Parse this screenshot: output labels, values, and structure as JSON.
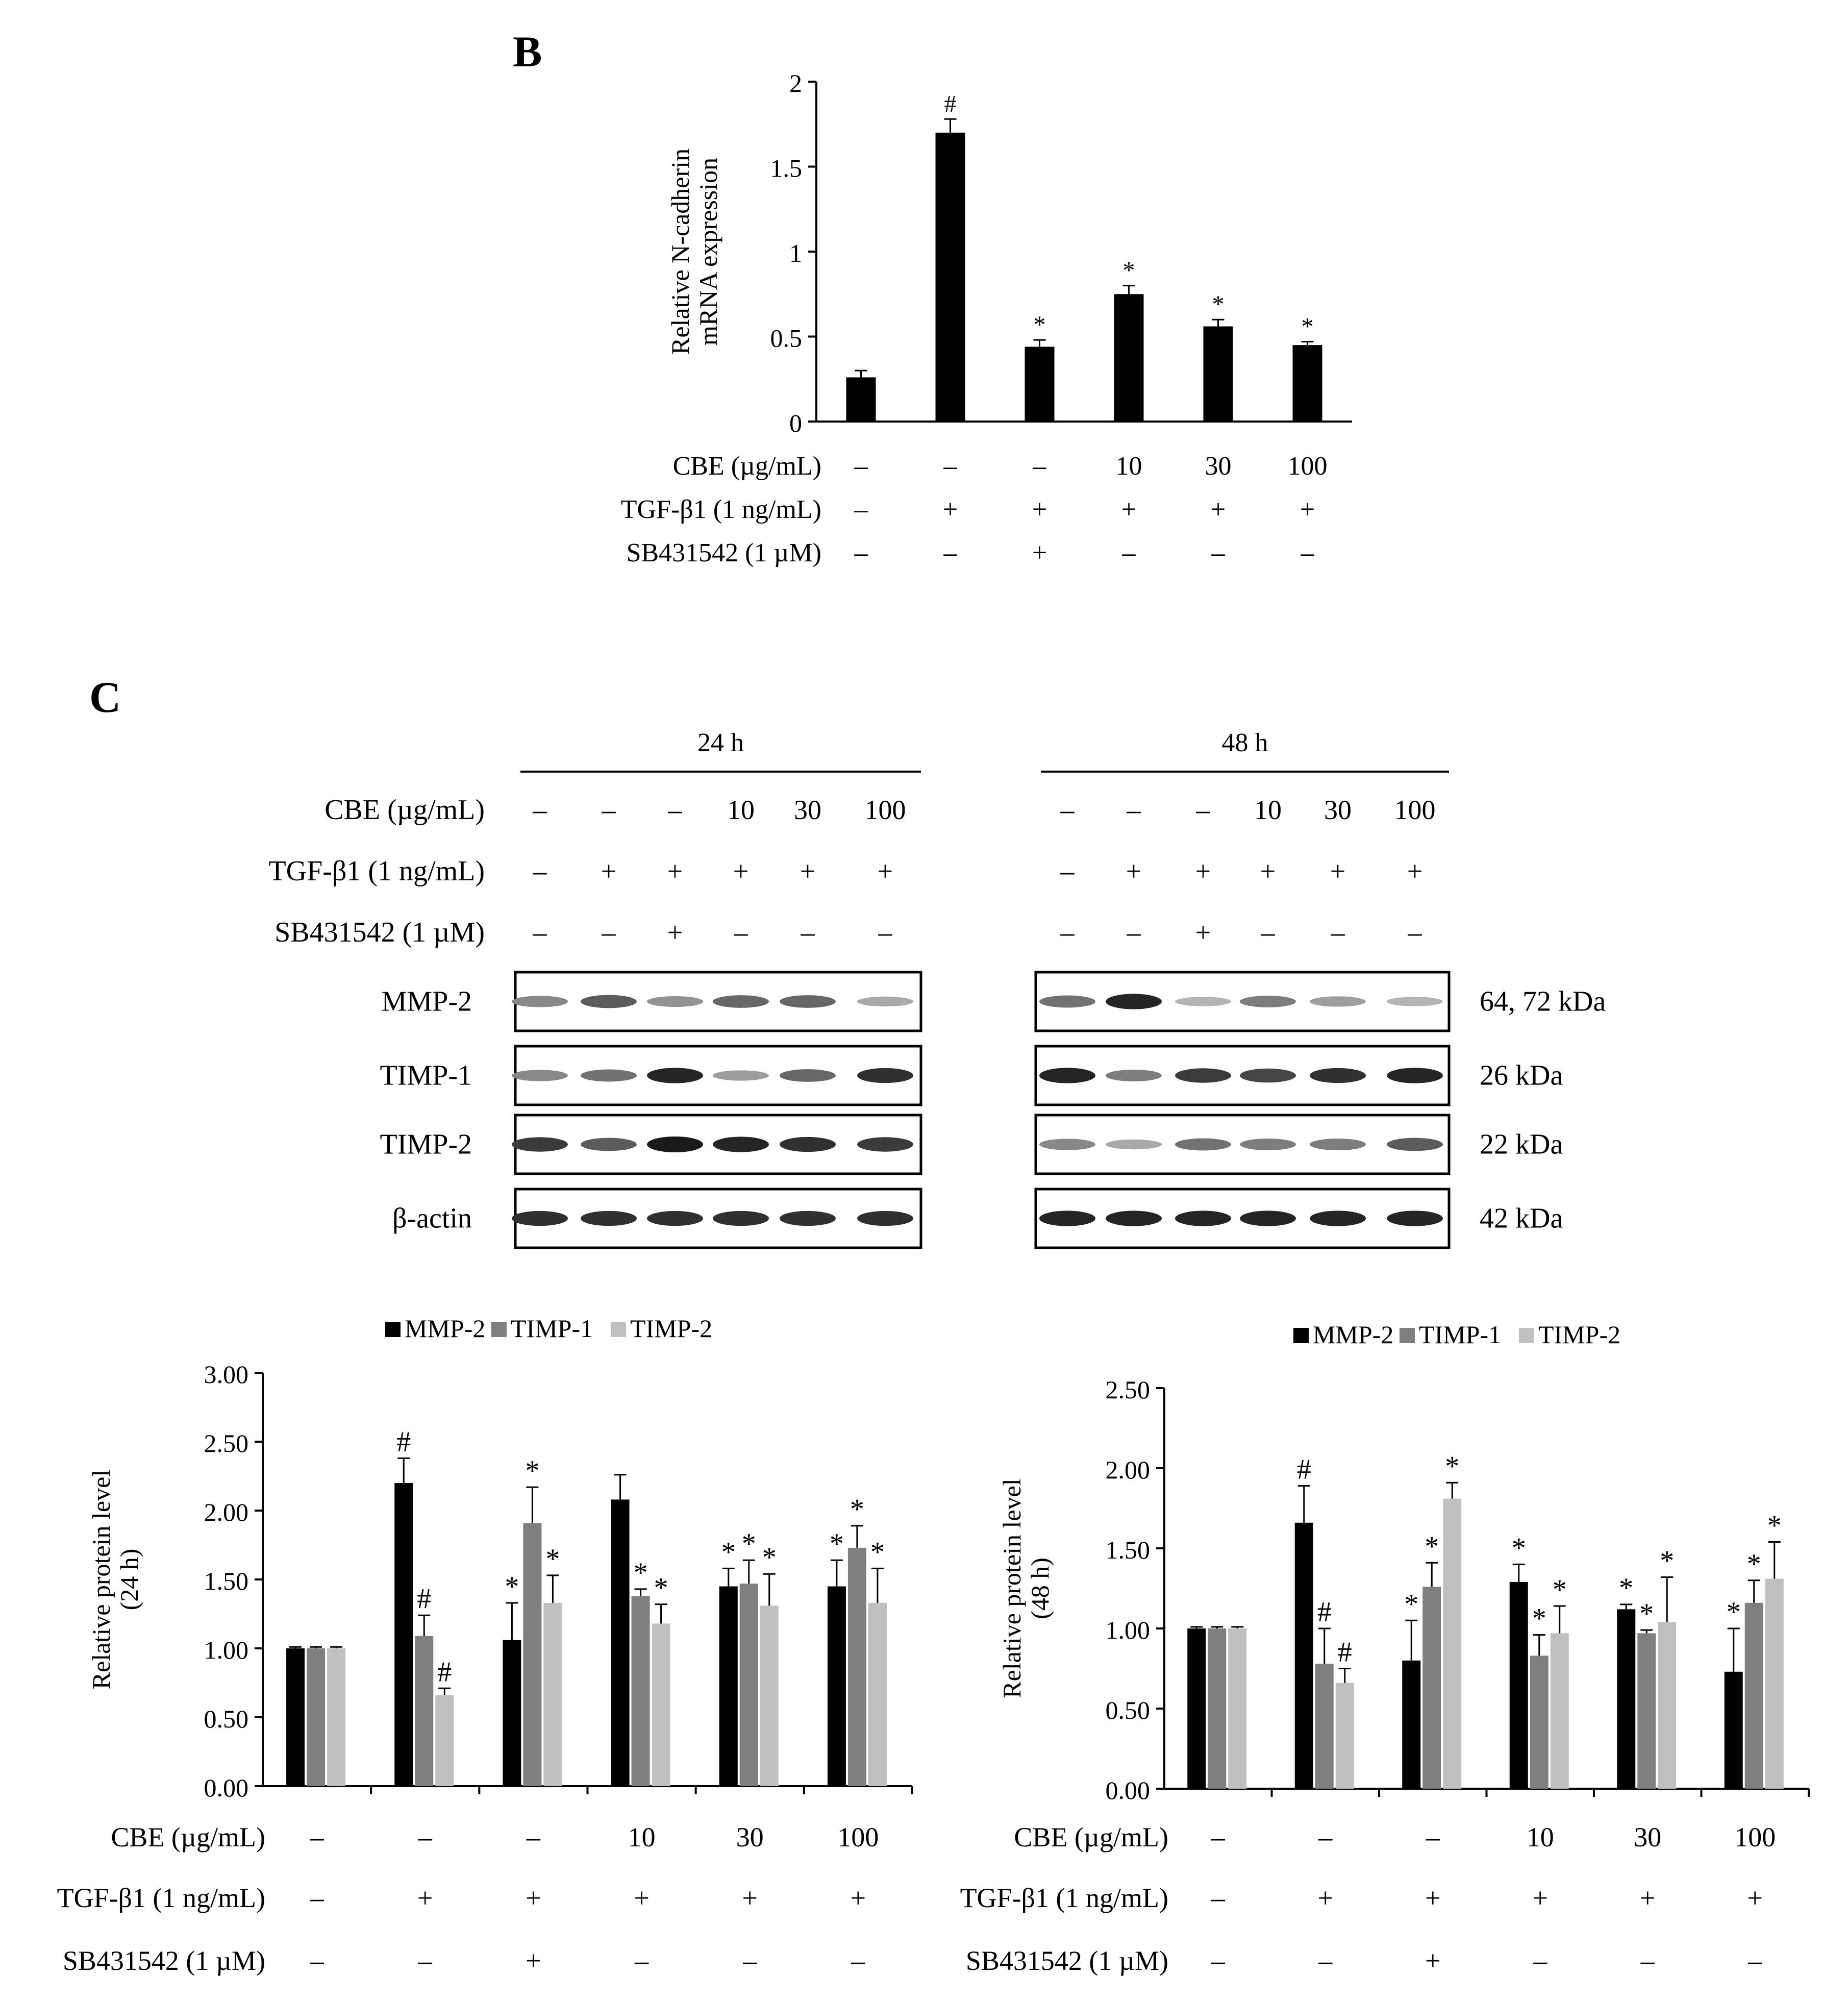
{
  "panel_labels": {
    "b": "B",
    "c": "C"
  },
  "treatment_labels": {
    "cbe": "CBE (µg/mL)",
    "tgf": "TGF-β1 (1 ng/mL)",
    "sb": "SB431542 (1 µM)"
  },
  "treatments": {
    "cbe": [
      "–",
      "–",
      "–",
      "10",
      "30",
      "100"
    ],
    "tgf": [
      "–",
      "+",
      "+",
      "+",
      "+",
      "+"
    ],
    "sb": [
      "–",
      "–",
      "+",
      "–",
      "–",
      "–"
    ]
  },
  "blot": {
    "time_labels": [
      "24 h",
      "48 h"
    ],
    "rows": [
      {
        "label": "MMP-2",
        "kda": "64, 72 kDa"
      },
      {
        "label": "TIMP-1",
        "kda": "26 kDa"
      },
      {
        "label": "TIMP-2",
        "kda": "22 kDa"
      },
      {
        "label": "β-actin",
        "kda": "42 kDa"
      }
    ],
    "band_intensity": {
      "24h": [
        [
          0.45,
          0.65,
          0.4,
          0.6,
          0.6,
          0.3
        ],
        [
          0.45,
          0.55,
          0.9,
          0.35,
          0.6,
          0.85
        ],
        [
          0.8,
          0.65,
          0.95,
          0.9,
          0.85,
          0.8
        ],
        [
          0.85,
          0.85,
          0.85,
          0.85,
          0.85,
          0.85
        ]
      ],
      "48h": [
        [
          0.55,
          0.9,
          0.25,
          0.5,
          0.35,
          0.25
        ],
        [
          0.9,
          0.5,
          0.8,
          0.75,
          0.85,
          0.9
        ],
        [
          0.45,
          0.3,
          0.55,
          0.5,
          0.5,
          0.65
        ],
        [
          0.9,
          0.9,
          0.9,
          0.9,
          0.9,
          0.9
        ]
      ]
    }
  },
  "colors": {
    "mmp2": "#000000",
    "timp1": "#7f7f7f",
    "timp2": "#c0c0c0"
  },
  "chart_data": [
    {
      "type": "bar",
      "ylabel": [
        "Relative N-cadherin",
        "mRNA expression"
      ],
      "yticks": [
        "0",
        "0.5",
        "1",
        "1.5",
        "2"
      ],
      "ylim": [
        0,
        2
      ],
      "series": [
        {
          "values": [
            0.26,
            1.7,
            0.44,
            0.75,
            0.56,
            0.45
          ],
          "errors": [
            0.04,
            0.08,
            0.04,
            0.05,
            0.04,
            0.02
          ],
          "color": "#000000"
        }
      ],
      "annotations": [
        "",
        "#",
        "*",
        "*",
        "*",
        "*"
      ]
    },
    {
      "type": "bar",
      "ylabel": [
        "Relative protein level",
        "(24 h)"
      ],
      "yticks": [
        "0.00",
        "0.50",
        "1.00",
        "1.50",
        "2.00",
        "2.50",
        "3.00"
      ],
      "ylim": [
        0,
        3
      ],
      "legend": "top",
      "series": [
        {
          "name": "MMP-2",
          "color": "#000000",
          "values": [
            1.0,
            2.2,
            1.06,
            2.08,
            1.45,
            1.45
          ],
          "errors": [
            0.01,
            0.18,
            0.27,
            0.18,
            0.13,
            0.19
          ],
          "annotations": [
            "",
            "#",
            "*",
            "",
            "*",
            "*"
          ]
        },
        {
          "name": "TIMP-1",
          "color": "#7f7f7f",
          "values": [
            1.0,
            1.09,
            1.91,
            1.38,
            1.47,
            1.73
          ],
          "errors": [
            0.01,
            0.15,
            0.26,
            0.05,
            0.17,
            0.16
          ],
          "annotations": [
            "",
            "#",
            "*",
            "*",
            "*",
            "*"
          ]
        },
        {
          "name": "TIMP-2",
          "color": "#c0c0c0",
          "values": [
            1.0,
            0.66,
            1.33,
            1.18,
            1.31,
            1.33
          ],
          "errors": [
            0.01,
            0.05,
            0.2,
            0.14,
            0.23,
            0.25
          ],
          "annotations": [
            "",
            "#",
            "*",
            "*",
            "*",
            "*"
          ]
        }
      ]
    },
    {
      "type": "bar",
      "ylabel": [
        "Relative protein level",
        "(48 h)"
      ],
      "yticks": [
        "0.00",
        "0.50",
        "1.00",
        "1.50",
        "2.00",
        "2.50"
      ],
      "ylim": [
        0,
        2.5
      ],
      "legend": "top",
      "series": [
        {
          "name": "MMP-2",
          "color": "#000000",
          "values": [
            1.0,
            1.66,
            0.8,
            1.29,
            1.12,
            0.73
          ],
          "errors": [
            0.01,
            0.23,
            0.25,
            0.11,
            0.03,
            0.27
          ],
          "annotations": [
            "",
            "#",
            "*",
            "*",
            "*",
            "*"
          ]
        },
        {
          "name": "TIMP-1",
          "color": "#7f7f7f",
          "values": [
            1.0,
            0.78,
            1.26,
            0.83,
            0.97,
            1.16
          ],
          "errors": [
            0.01,
            0.22,
            0.15,
            0.13,
            0.02,
            0.14
          ],
          "annotations": [
            "",
            "#",
            "*",
            "*",
            "*",
            "*"
          ]
        },
        {
          "name": "TIMP-2",
          "color": "#c0c0c0",
          "values": [
            1.0,
            0.66,
            1.81,
            0.97,
            1.04,
            1.31
          ],
          "errors": [
            0.01,
            0.09,
            0.1,
            0.17,
            0.28,
            0.23
          ],
          "annotations": [
            "",
            "#",
            "*",
            "*",
            "*",
            "*"
          ]
        }
      ]
    }
  ]
}
